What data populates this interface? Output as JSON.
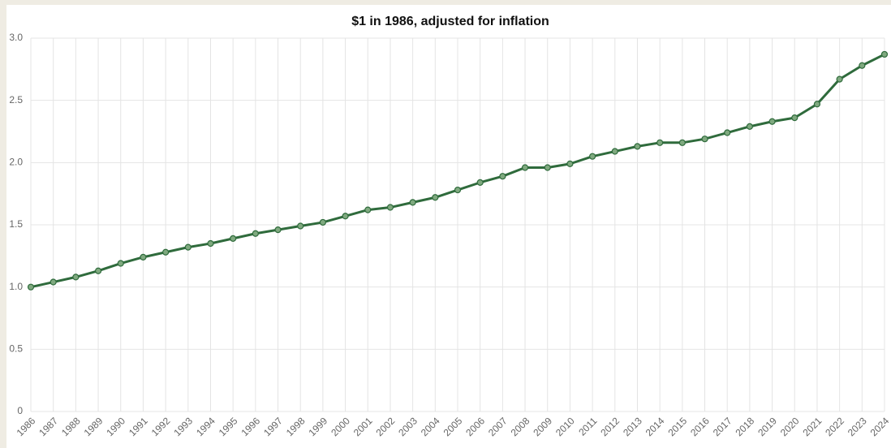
{
  "chart_data": {
    "type": "line",
    "title": "$1 in 1986, adjusted for inflation",
    "categories": [
      "1986",
      "1987",
      "1988",
      "1989",
      "1990",
      "1991",
      "1992",
      "1993",
      "1994",
      "1995",
      "1996",
      "1997",
      "1998",
      "1999",
      "2000",
      "2001",
      "2002",
      "2003",
      "2004",
      "2005",
      "2006",
      "2007",
      "2008",
      "2009",
      "2010",
      "2011",
      "2012",
      "2013",
      "2014",
      "2015",
      "2016",
      "2017",
      "2018",
      "2019",
      "2020",
      "2021",
      "2022",
      "2023",
      "2024"
    ],
    "values": [
      1.0,
      1.04,
      1.08,
      1.13,
      1.19,
      1.24,
      1.28,
      1.32,
      1.35,
      1.39,
      1.43,
      1.46,
      1.49,
      1.52,
      1.57,
      1.62,
      1.64,
      1.68,
      1.72,
      1.78,
      1.84,
      1.89,
      1.96,
      1.96,
      1.99,
      2.05,
      2.09,
      2.13,
      2.16,
      2.16,
      2.19,
      2.24,
      2.29,
      2.33,
      2.36,
      2.47,
      2.67,
      2.78,
      2.87
    ],
    "color": "#2f6b3c",
    "ylim": [
      0,
      3
    ],
    "yticks": [
      0,
      0.5,
      {
        "value": 1,
        "label": "1.0"
      },
      1.5,
      {
        "value": 2,
        "label": "2.0"
      },
      2.5,
      {
        "value": 3,
        "label": "3.0"
      }
    ],
    "grid": true
  }
}
